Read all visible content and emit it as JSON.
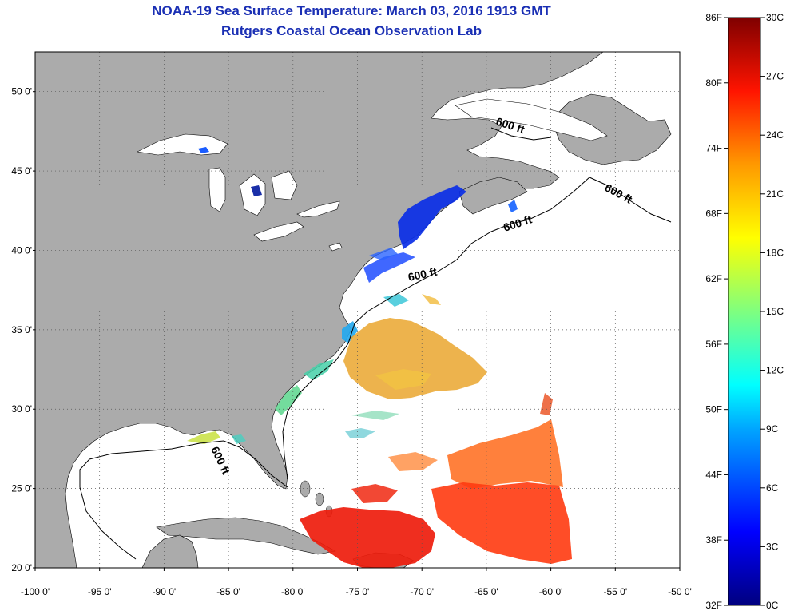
{
  "header": {
    "title": "NOAA-19 Sea Surface Temperature:  March 03, 2016 1913 GMT",
    "subtitle": "Rutgers Coastal Ocean Observation Lab"
  },
  "map": {
    "lon_range": [
      -100,
      -50
    ],
    "lat_range": [
      20,
      52.5
    ],
    "lat_ticks": [
      {
        "value": 20,
        "label": "20 0'"
      },
      {
        "value": 25,
        "label": "25 0'"
      },
      {
        "value": 30,
        "label": "30 0'"
      },
      {
        "value": 35,
        "label": "35 0'"
      },
      {
        "value": 40,
        "label": "40 0'"
      },
      {
        "value": 45,
        "label": "45 0'"
      },
      {
        "value": 50,
        "label": "50 0'"
      }
    ],
    "lon_ticks": [
      {
        "value": -100,
        "label": "-100 0'"
      },
      {
        "value": -95,
        "label": "-95 0'"
      },
      {
        "value": -90,
        "label": "-90 0'"
      },
      {
        "value": -85,
        "label": "-85 0'"
      },
      {
        "value": -80,
        "label": "-80 0'"
      },
      {
        "value": -75,
        "label": "-75 0'"
      },
      {
        "value": -70,
        "label": "-70 0'"
      },
      {
        "value": -65,
        "label": "-65 0'"
      },
      {
        "value": -60,
        "label": "-60 0'"
      },
      {
        "value": -55,
        "label": "-55 0'"
      },
      {
        "value": -50,
        "label": "-50 0'"
      }
    ],
    "depth_labels": [
      "600 ft",
      "600 ft",
      "600 ft",
      "600 ft",
      "600 ft"
    ],
    "colors": {
      "land": "#ababab",
      "ocean": "#ffffff",
      "grid": "#555555"
    }
  },
  "colorbar": {
    "fahrenheit": [
      "86F",
      "80F",
      "74F",
      "68F",
      "62F",
      "56F",
      "50F",
      "44F",
      "38F",
      "32F"
    ],
    "celsius": [
      "30C",
      "27C",
      "24C",
      "21C",
      "18C",
      "15C",
      "12C",
      "9C",
      "6C",
      "3C",
      "0C"
    ],
    "colors": [
      "#00007f",
      "#0000ff",
      "#00a5ff",
      "#00ffff",
      "#7fff7f",
      "#ffff00",
      "#ff9900",
      "#ff1400",
      "#7f0000"
    ]
  }
}
